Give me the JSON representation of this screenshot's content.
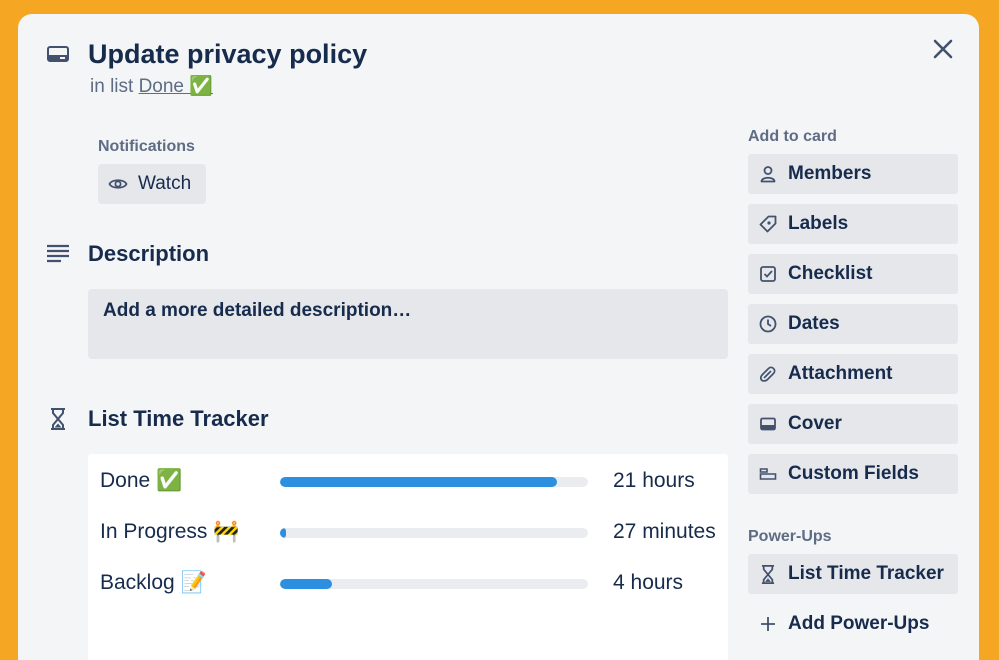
{
  "card": {
    "title": "Update privacy policy",
    "in_list_prefix": "in list",
    "list_name": "Done ✅"
  },
  "notifications": {
    "label": "Notifications",
    "watch_label": "Watch"
  },
  "description": {
    "title": "Description",
    "placeholder": "Add a more detailed description…"
  },
  "time_tracker": {
    "title": "List Time Tracker",
    "rows": [
      {
        "label": "Done ✅",
        "value": "21 hours",
        "fraction": 0.9
      },
      {
        "label": "In Progress 🚧",
        "value": "27 minutes",
        "fraction": 0.02
      },
      {
        "label": "Backlog 📝",
        "value": "4 hours",
        "fraction": 0.17
      }
    ]
  },
  "sidebar": {
    "add_to_card_label": "Add to card",
    "add_items": [
      {
        "label": "Members",
        "icon": "person-icon"
      },
      {
        "label": "Labels",
        "icon": "tag-icon"
      },
      {
        "label": "Checklist",
        "icon": "checkbox-icon"
      },
      {
        "label": "Dates",
        "icon": "clock-icon"
      },
      {
        "label": "Attachment",
        "icon": "paperclip-icon"
      },
      {
        "label": "Cover",
        "icon": "cover-icon"
      },
      {
        "label": "Custom Fields",
        "icon": "custom-fields-icon"
      }
    ],
    "power_ups_label": "Power-Ups",
    "power_up_items": [
      {
        "label": "List Time Tracker",
        "icon": "hourglass-icon"
      },
      {
        "label": "Add Power-Ups",
        "icon": "plus-icon"
      }
    ]
  },
  "colors": {
    "background": "#f5a623",
    "card": "#f4f5f7",
    "progress_fill": "#2d8fe0",
    "button_bg": "#e5e7eb"
  }
}
